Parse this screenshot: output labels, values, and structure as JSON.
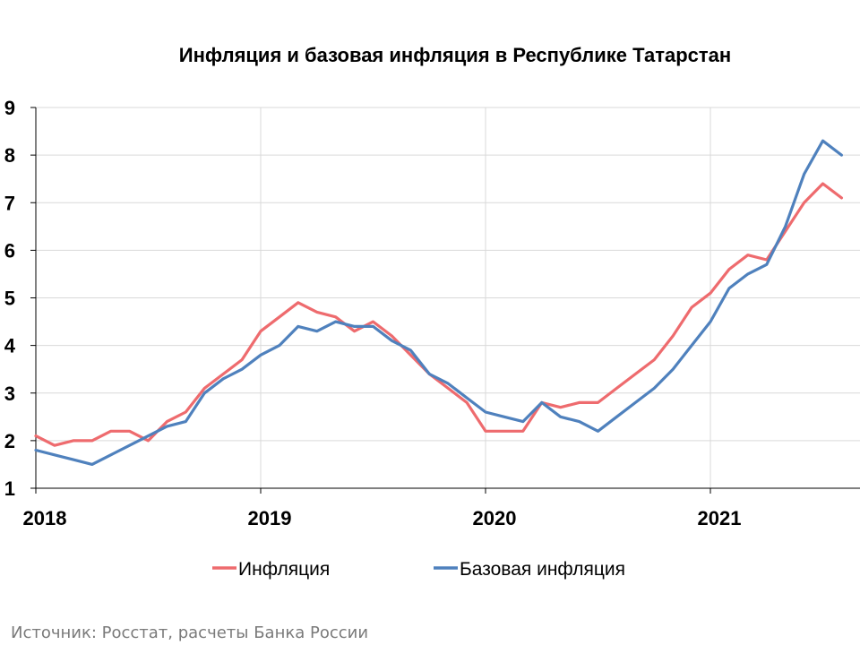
{
  "chart_data": {
    "type": "line",
    "title": "Инфляция и базовая инфляция в Республике Татарстан",
    "source": "Источник: Росстат, расчеты Банка России",
    "ylim": [
      1,
      9
    ],
    "y_ticks": [
      "1",
      "2",
      "3",
      "4",
      "5",
      "6",
      "7",
      "8",
      "9"
    ],
    "x_start": 2018,
    "x_labels": [
      "2018",
      "2019",
      "2020",
      "2021"
    ],
    "grid": true,
    "legend_position": "bottom",
    "series": [
      {
        "name": "Инфляция",
        "color": "#ee6b6e",
        "values": [
          2.1,
          1.9,
          2.0,
          2.0,
          2.2,
          2.2,
          2.0,
          2.4,
          2.6,
          3.1,
          3.4,
          3.7,
          4.3,
          4.6,
          4.9,
          4.7,
          4.6,
          4.3,
          4.5,
          4.2,
          3.8,
          3.4,
          3.1,
          2.8,
          2.2,
          2.2,
          2.2,
          2.8,
          2.7,
          2.8,
          2.8,
          3.1,
          3.4,
          3.7,
          4.2,
          4.8,
          5.1,
          5.6,
          5.9,
          5.8,
          6.4,
          7.0,
          7.4,
          7.1
        ]
      },
      {
        "name": "Базовая инфляция",
        "color": "#4f81bd",
        "values": [
          1.8,
          1.7,
          1.6,
          1.5,
          1.7,
          1.9,
          2.1,
          2.3,
          2.4,
          3.0,
          3.3,
          3.5,
          3.8,
          4.0,
          4.4,
          4.3,
          4.5,
          4.4,
          4.4,
          4.1,
          3.9,
          3.4,
          3.2,
          2.9,
          2.6,
          2.5,
          2.4,
          2.8,
          2.5,
          2.4,
          2.2,
          2.5,
          2.8,
          3.1,
          3.5,
          4.0,
          4.5,
          5.2,
          5.5,
          5.7,
          6.5,
          7.6,
          8.3,
          8.0
        ]
      }
    ]
  }
}
